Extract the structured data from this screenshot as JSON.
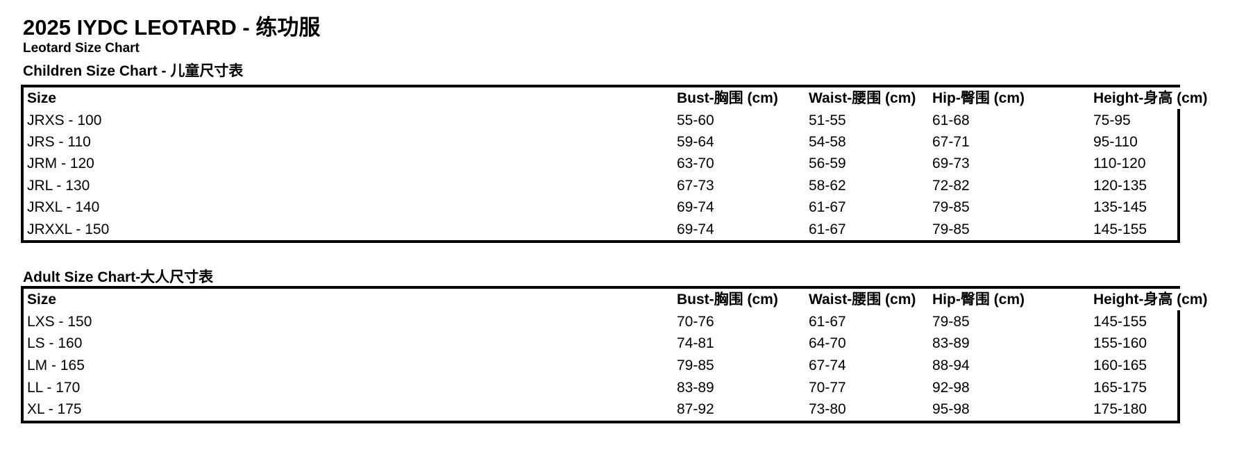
{
  "page": {
    "title": "2025 IYDC LEOTARD - 练功服",
    "subtitle": "Leotard Size Chart"
  },
  "columns": {
    "size": "Size",
    "bust": "Bust-胸围 (cm)",
    "waist": "Waist-腰围 (cm)",
    "hip": "Hip-臀围 (cm)",
    "height": "Height-身高 (cm)"
  },
  "children": {
    "heading": "Children Size Chart - 儿童尺寸表",
    "rows": [
      {
        "size": "JRXS - 100",
        "bust": "55-60",
        "waist": "51-55",
        "hip": "61-68",
        "height": "75-95"
      },
      {
        "size": "JRS - 110",
        "bust": "59-64",
        "waist": "54-58",
        "hip": "67-71",
        "height": "95-110"
      },
      {
        "size": "JRM - 120",
        "bust": "63-70",
        "waist": "56-59",
        "hip": "69-73",
        "height": "110-120"
      },
      {
        "size": "JRL - 130",
        "bust": "67-73",
        "waist": "58-62",
        "hip": "72-82",
        "height": "120-135"
      },
      {
        "size": "JRXL - 140",
        "bust": "69-74",
        "waist": "61-67",
        "hip": "79-85",
        "height": "135-145"
      },
      {
        "size": "JRXXL - 150",
        "bust": "69-74",
        "waist": "61-67",
        "hip": "79-85",
        "height": "145-155"
      }
    ]
  },
  "adult": {
    "heading": "Adult Size Chart-大人尺寸表",
    "rows": [
      {
        "size": "LXS - 150",
        "bust": "70-76",
        "waist": "61-67",
        "hip": "79-85",
        "height": "145-155"
      },
      {
        "size": "LS - 160",
        "bust": "74-81",
        "waist": "64-70",
        "hip": "83-89",
        "height": "155-160"
      },
      {
        "size": "LM - 165",
        "bust": "79-85",
        "waist": "67-74",
        "hip": "88-94",
        "height": "160-165"
      },
      {
        "size": "LL - 170",
        "bust": "83-89",
        "waist": "70-77",
        "hip": "92-98",
        "height": "165-175"
      },
      {
        "size": "XL - 175",
        "bust": "87-92",
        "waist": "73-80",
        "hip": "95-98",
        "height": "175-180"
      }
    ]
  },
  "colors": {
    "text": "#000000",
    "border": "#000000",
    "background": "#ffffff"
  }
}
